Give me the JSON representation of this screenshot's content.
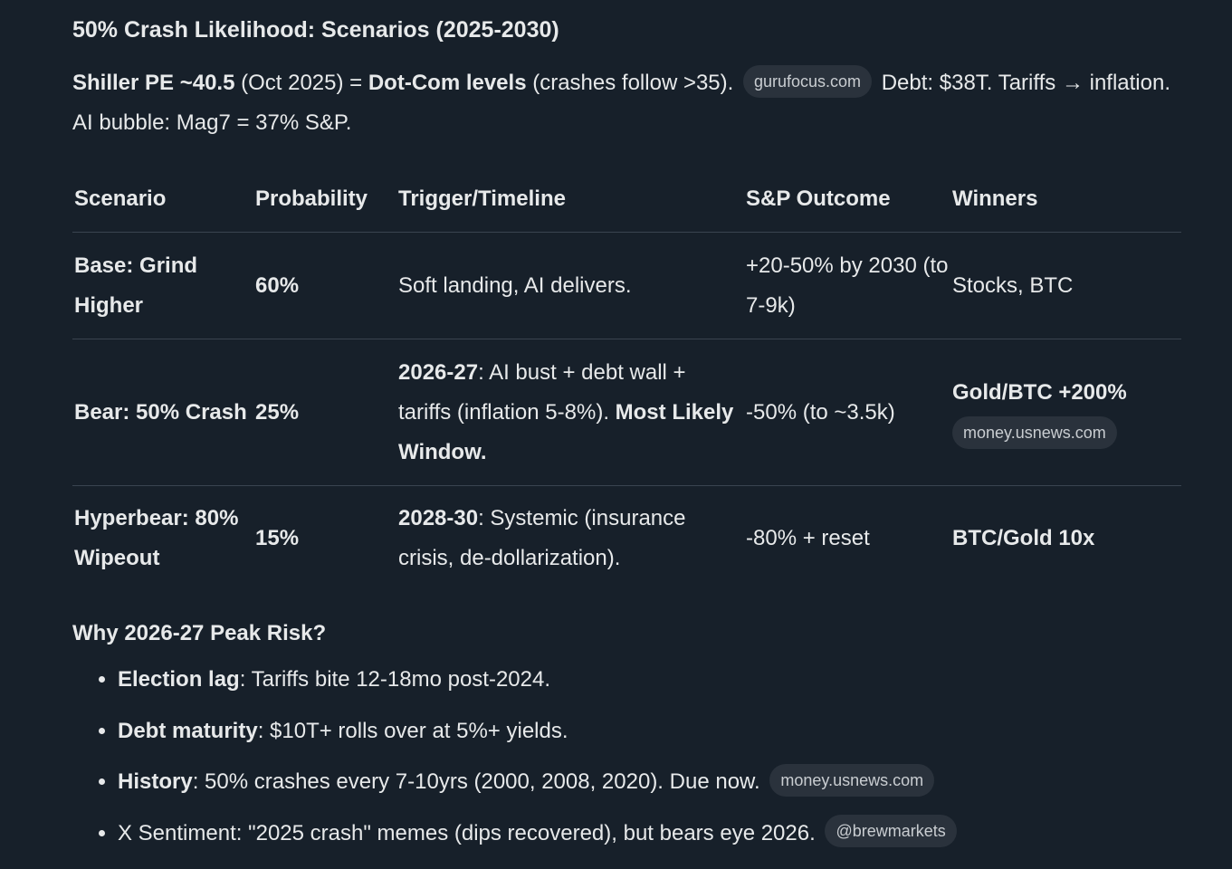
{
  "title": "50% Crash Likelihood: Scenarios (2025-2030)",
  "intro": {
    "shiller_label": "Shiller PE ~40.5",
    "shiller_date": " (Oct 2025) = ",
    "dotcom_label": "Dot-Com levels",
    "dotcom_note": " (crashes follow >35).",
    "source_chip": "gurufocus.com",
    "tail": "Debt: $38T. Tariffs → inflation. AI bubble: Mag7 = 37% S&P."
  },
  "table": {
    "headers": [
      "Scenario",
      "Probability",
      "Trigger/Timeline",
      "S&P Outcome",
      "Winners"
    ],
    "rows": [
      {
        "scenario": "Base: Grind Higher",
        "probability": "60%",
        "trigger_bold": "",
        "trigger_text": "Soft landing, AI delivers.",
        "trigger_bold2": "",
        "outcome": "+20-50% by 2030 (to 7-9k)",
        "winners": "Stocks, BTC",
        "winners_chip": ""
      },
      {
        "scenario": "Bear: 50% Crash",
        "probability": "25%",
        "trigger_bold": "2026-27",
        "trigger_text": ": AI bust + debt wall + tariffs (inflation 5-8%). ",
        "trigger_bold2": "Most Likely Window.",
        "outcome": "-50% (to ~3.5k)",
        "winners": "Gold/BTC +200%",
        "winners_chip": "money.usnews.com"
      },
      {
        "scenario": "Hyperbear: 80% Wipeout",
        "probability": "15%",
        "trigger_bold": "2028-30",
        "trigger_text": ": Systemic (insurance crisis, de-dollarization).",
        "trigger_bold2": "",
        "outcome": "-80% + reset",
        "winners": "BTC/Gold 10x",
        "winners_chip": ""
      }
    ]
  },
  "why": {
    "title": "Why 2026-27 Peak Risk?",
    "items": [
      {
        "bold": "Election lag",
        "text": ": Tariffs bite 12-18mo post-2024.",
        "chip": ""
      },
      {
        "bold": "Debt maturity",
        "text": ": $10T+ rolls over at 5%+ yields.",
        "chip": ""
      },
      {
        "bold": "History",
        "text": ": 50% crashes every 7-10yrs (2000, 2008, 2020). Due now.",
        "chip": "money.usnews.com"
      },
      {
        "bold": "",
        "text": "X Sentiment: \"2025 crash\" memes (dips recovered), but bears eye 2026.",
        "chip": "@brewmarkets"
      }
    ]
  },
  "colors": {
    "background": "#17202a",
    "text": "#e7e9ea",
    "chip_bg": "#2a323c",
    "chip_text": "#c9cdd1",
    "divider": "#3a4450"
  }
}
